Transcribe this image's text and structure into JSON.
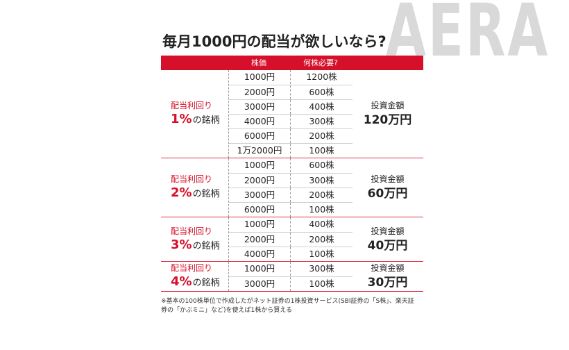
{
  "watermark": "AERA",
  "title": "毎月1000円の配当が欲しいなら?",
  "header": {
    "price": "株価",
    "shares": "何株必要?"
  },
  "groups": [
    {
      "yield_label": "配当利回り",
      "percent": "1%",
      "suffix": "の銘柄",
      "rows": [
        {
          "price": "1000円",
          "shares": "1200株"
        },
        {
          "price": "2000円",
          "shares": "600株"
        },
        {
          "price": "3000円",
          "shares": "400株"
        },
        {
          "price": "4000円",
          "shares": "300株"
        },
        {
          "price": "6000円",
          "shares": "200株"
        },
        {
          "price": "1万2000円",
          "shares": "100株"
        }
      ],
      "invest_label": "投資金額",
      "invest_amount": "120万円"
    },
    {
      "yield_label": "配当利回り",
      "percent": "2%",
      "suffix": "の銘柄",
      "rows": [
        {
          "price": "1000円",
          "shares": "600株"
        },
        {
          "price": "2000円",
          "shares": "300株"
        },
        {
          "price": "3000円",
          "shares": "200株"
        },
        {
          "price": "6000円",
          "shares": "100株"
        }
      ],
      "invest_label": "投資金額",
      "invest_amount": "60万円"
    },
    {
      "yield_label": "配当利回り",
      "percent": "3%",
      "suffix": "の銘柄",
      "rows": [
        {
          "price": "1000円",
          "shares": "400株"
        },
        {
          "price": "2000円",
          "shares": "200株"
        },
        {
          "price": "4000円",
          "shares": "100株"
        }
      ],
      "invest_label": "投資金額",
      "invest_amount": "40万円"
    },
    {
      "yield_label": "配当利回り",
      "percent": "4%",
      "suffix": "の銘柄",
      "rows": [
        {
          "price": "1000円",
          "shares": "300株"
        },
        {
          "price": "3000円",
          "shares": "100株"
        }
      ],
      "invest_label": "投資金額",
      "invest_amount": "30万円"
    }
  ],
  "footnote": "※基本の100株単位で作成したがネット証券の1株投資サービス(SBI証券の「S株」、楽天証券の「かぶミニ」など)を使えば1株から買える"
}
